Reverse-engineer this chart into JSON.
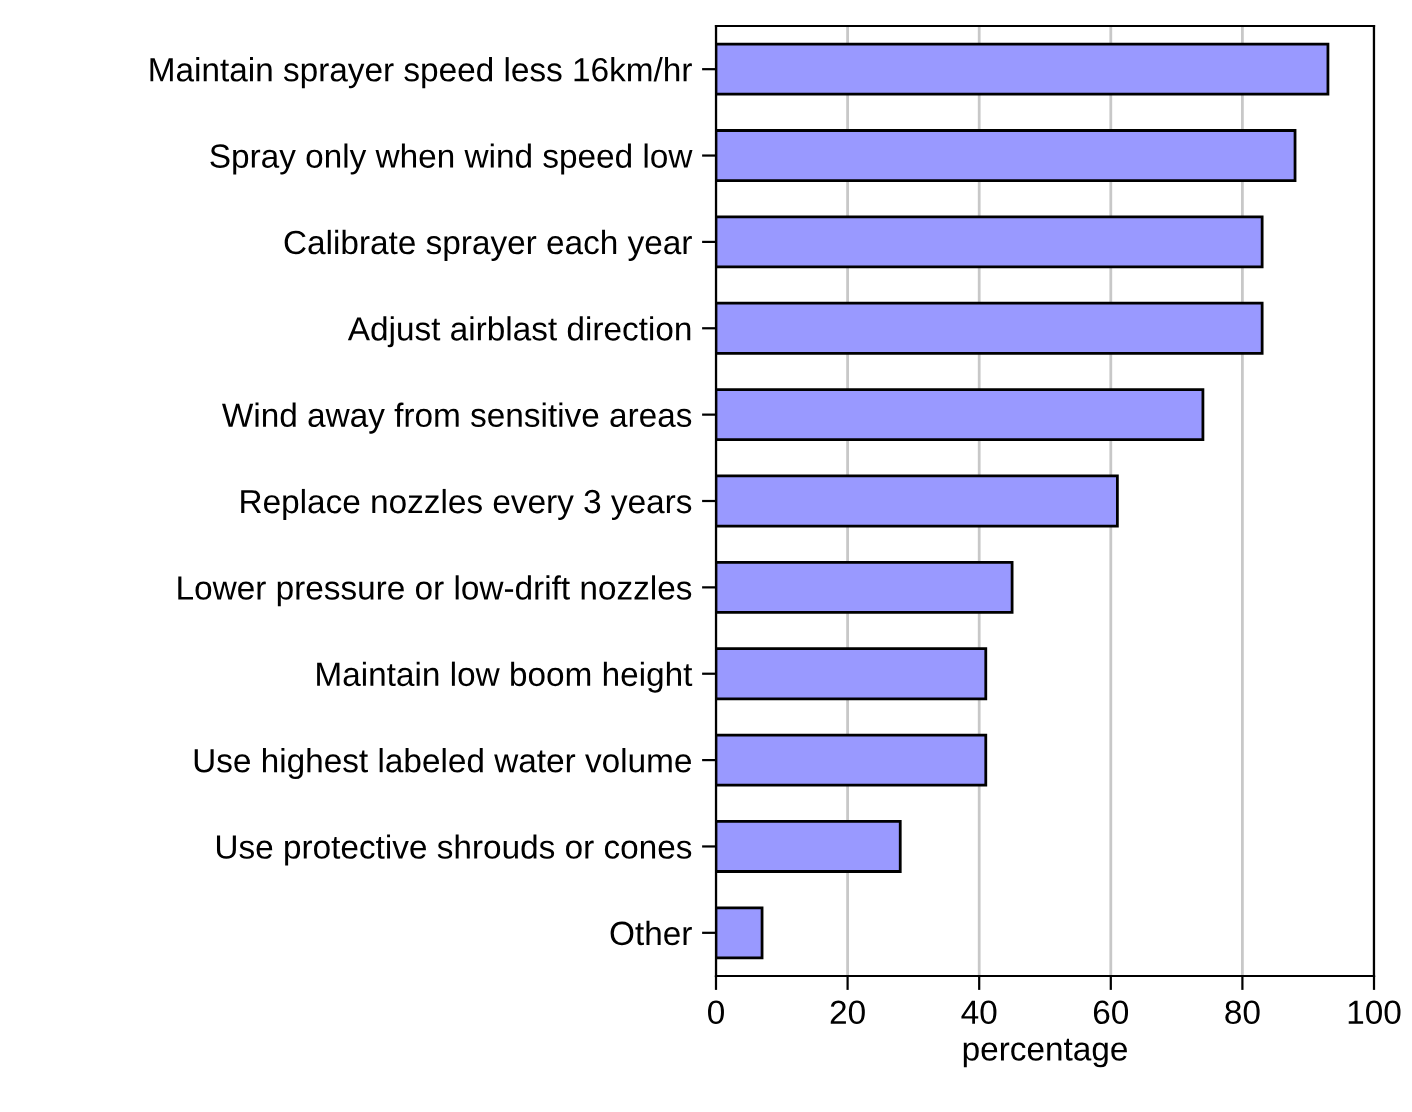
{
  "chart_data": {
    "type": "bar",
    "orientation": "horizontal",
    "xlabel": "percentage",
    "categories": [
      "Maintain sprayer speed less 16km/hr",
      "Spray only when wind speed low",
      "Calibrate sprayer each year",
      "Adjust airblast direction",
      "Wind away from sensitive areas",
      "Replace nozzles every 3 years",
      "Lower pressure or low-drift nozzles",
      "Maintain low boom height",
      "Use highest labeled water volume",
      "Use protective shrouds or cones",
      "Other"
    ],
    "values": [
      93,
      88,
      83,
      83,
      74,
      61,
      45,
      41,
      41,
      28,
      7
    ],
    "color": "#9999ff",
    "xlim": [
      0,
      100
    ],
    "xticks": [
      0,
      20,
      40,
      60,
      80,
      100
    ],
    "grid": "x"
  }
}
